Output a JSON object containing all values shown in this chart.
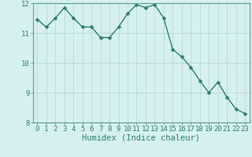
{
  "x": [
    0,
    1,
    2,
    3,
    4,
    5,
    6,
    7,
    8,
    9,
    10,
    11,
    12,
    13,
    14,
    15,
    16,
    17,
    18,
    19,
    20,
    21,
    22,
    23
  ],
  "y": [
    11.45,
    11.2,
    11.5,
    11.85,
    11.5,
    11.2,
    11.2,
    10.85,
    10.85,
    11.2,
    11.65,
    11.95,
    11.85,
    11.95,
    11.5,
    10.45,
    10.2,
    9.85,
    9.4,
    9.0,
    9.35,
    8.85,
    8.45,
    8.3
  ],
  "line_color": "#2e7d6e",
  "marker_color": "#2e7d6e",
  "bg_color": "#d6f0ef",
  "grid_color": "#b8d8d4",
  "xlabel": "Humidex (Indice chaleur)",
  "ylim": [
    8,
    12
  ],
  "xlim_min": -0.5,
  "xlim_max": 23.5,
  "yticks": [
    8,
    9,
    10,
    11,
    12
  ],
  "xticks": [
    0,
    1,
    2,
    3,
    4,
    5,
    6,
    7,
    8,
    9,
    10,
    11,
    12,
    13,
    14,
    15,
    16,
    17,
    18,
    19,
    20,
    21,
    22,
    23
  ],
  "tick_color": "#2e7d6e",
  "label_color": "#2e7d6e",
  "spine_color": "#5a9a90",
  "tick_font_size": 6.5,
  "xlabel_font_size": 7.5,
  "marker_size": 2.5,
  "line_width": 1.0
}
